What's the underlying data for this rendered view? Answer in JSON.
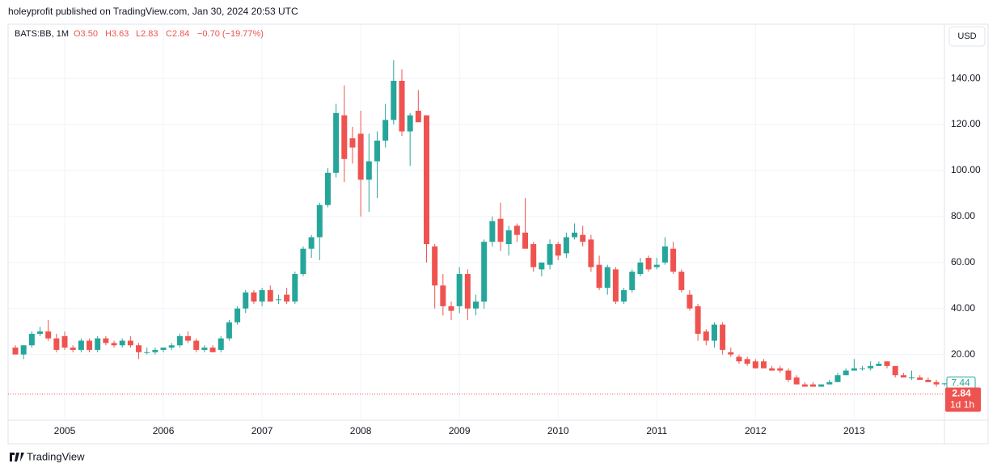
{
  "header": {
    "attribution": "holeyprofit published on TradingView.com, Jan 30, 2024 20:53 UTC",
    "symbol": "BATS:BB, 1M",
    "open": "O3.50",
    "high": "H3.63",
    "low": "L2.83",
    "close": "C2.84",
    "change": "−0.70 (−19.77%)",
    "currency": "USD"
  },
  "footer": {
    "brand": "TradingView"
  },
  "chart_data": {
    "type": "candlestick",
    "up_color": "#26a69a",
    "down_color": "#ef5350",
    "grid": true,
    "last_price": 7.44,
    "current_price": 2.84,
    "countdown": "1d 1h",
    "ylim": [
      -8.6,
      163.6
    ],
    "yticks": [
      {
        "value": 20,
        "label": "20.00"
      },
      {
        "value": 40,
        "label": "40.00"
      },
      {
        "value": 60,
        "label": "60.00"
      },
      {
        "value": 80,
        "label": "80.00"
      },
      {
        "value": 100,
        "label": "100.00"
      },
      {
        "value": 120,
        "label": "120.00"
      },
      {
        "value": 140,
        "label": "140.00"
      }
    ],
    "categories": [
      null,
      null,
      null,
      null,
      null,
      null,
      "2005",
      null,
      null,
      null,
      null,
      null,
      null,
      null,
      null,
      null,
      null,
      null,
      "2006",
      null,
      null,
      null,
      null,
      null,
      null,
      null,
      null,
      null,
      null,
      null,
      "2007",
      null,
      null,
      null,
      null,
      null,
      null,
      null,
      null,
      null,
      null,
      null,
      "2008",
      null,
      null,
      null,
      null,
      null,
      null,
      null,
      null,
      null,
      null,
      null,
      "2009",
      null,
      null,
      null,
      null,
      null,
      null,
      null,
      null,
      null,
      null,
      null,
      "2010",
      null,
      null,
      null,
      null,
      null,
      null,
      null,
      null,
      null,
      null,
      null,
      "2011",
      null,
      null,
      null,
      null,
      null,
      null,
      null,
      null,
      null,
      null,
      null,
      "2012",
      null,
      null,
      null,
      null,
      null,
      null,
      null,
      null,
      null,
      null,
      null,
      "2013",
      null,
      null,
      null,
      null,
      null,
      null,
      null,
      null,
      null,
      null,
      null
    ],
    "candles": [
      [
        23,
        24,
        20,
        20
      ],
      [
        20,
        24,
        18,
        24
      ],
      [
        24,
        30,
        23,
        29
      ],
      [
        29,
        32,
        28,
        30
      ],
      [
        30,
        35,
        26,
        27
      ],
      [
        27,
        29,
        21,
        22
      ],
      [
        28,
        30,
        22,
        23
      ],
      [
        23,
        24,
        21,
        22
      ],
      [
        22,
        27,
        21,
        26
      ],
      [
        26,
        27,
        21,
        22
      ],
      [
        22,
        28,
        21,
        27
      ],
      [
        27,
        28,
        24,
        25
      ],
      [
        25,
        26,
        23,
        24
      ],
      [
        24,
        27,
        23,
        26
      ],
      [
        26,
        28,
        23,
        24
      ],
      [
        24,
        25,
        18,
        21
      ],
      [
        21,
        23,
        20,
        21
      ],
      [
        21,
        23,
        20,
        22
      ],
      [
        22,
        23,
        21,
        23
      ],
      [
        23,
        25,
        22,
        24
      ],
      [
        24,
        29,
        23,
        28
      ],
      [
        28,
        30,
        25,
        26
      ],
      [
        26,
        27,
        21,
        22
      ],
      [
        22,
        24,
        21,
        23
      ],
      [
        23,
        24,
        21,
        21
      ],
      [
        22,
        28,
        21,
        27
      ],
      [
        27,
        35,
        26,
        34
      ],
      [
        34,
        41,
        33,
        40
      ],
      [
        40,
        48,
        38,
        47
      ],
      [
        47,
        48,
        42,
        43
      ],
      [
        43,
        49,
        41,
        48
      ],
      [
        48,
        50,
        43,
        43
      ],
      [
        44,
        46,
        42,
        44
      ],
      [
        46,
        49,
        42,
        43
      ],
      [
        43,
        56,
        42,
        55
      ],
      [
        55,
        67,
        54,
        66
      ],
      [
        66,
        72,
        62,
        71
      ],
      [
        71,
        86,
        61,
        85
      ],
      [
        85,
        101,
        84,
        99
      ],
      [
        99,
        129,
        97,
        125
      ],
      [
        124,
        137,
        95,
        105
      ],
      [
        114,
        119,
        103,
        110
      ],
      [
        116,
        126,
        80,
        96
      ],
      [
        96,
        116,
        82,
        104
      ],
      [
        104,
        117,
        88,
        113
      ],
      [
        113,
        129,
        110,
        122
      ],
      [
        122,
        148,
        120,
        139
      ],
      [
        139,
        144,
        115,
        117
      ],
      [
        117,
        125,
        102,
        124
      ],
      [
        126,
        135,
        121,
        121
      ],
      [
        124,
        124,
        60,
        68
      ],
      [
        67,
        68,
        40,
        50
      ],
      [
        50,
        55,
        37,
        41
      ],
      [
        41,
        43,
        35,
        39
      ],
      [
        41,
        58,
        38,
        55
      ],
      [
        55,
        57,
        35,
        40
      ],
      [
        40,
        46,
        37,
        43
      ],
      [
        43,
        70,
        40,
        69
      ],
      [
        69,
        80,
        67,
        78
      ],
      [
        79,
        86,
        65,
        69
      ],
      [
        68,
        76,
        63,
        74
      ],
      [
        76,
        77,
        69,
        72
      ],
      [
        73,
        88,
        67,
        66
      ],
      [
        68,
        69,
        56,
        58
      ],
      [
        57,
        60,
        54,
        60
      ],
      [
        59,
        70,
        57,
        68
      ],
      [
        68,
        69,
        61,
        63
      ],
      [
        64,
        73,
        62,
        71
      ],
      [
        71,
        77,
        70,
        73
      ],
      [
        72,
        76,
        67,
        69
      ],
      [
        70,
        72,
        56,
        58
      ],
      [
        59,
        63,
        48,
        49
      ],
      [
        49,
        59,
        46,
        58
      ],
      [
        57,
        58,
        42,
        43
      ],
      [
        43,
        49,
        42,
        48
      ],
      [
        48,
        57,
        47,
        56
      ],
      [
        55,
        62,
        54,
        60
      ],
      [
        62,
        63,
        56,
        57
      ],
      [
        58,
        62,
        57,
        59
      ],
      [
        60,
        71,
        59,
        67
      ],
      [
        66,
        69,
        55,
        56
      ],
      [
        56,
        57,
        47,
        48
      ],
      [
        46,
        48,
        39,
        40
      ],
      [
        41,
        42,
        26,
        29
      ],
      [
        30,
        31,
        24,
        26
      ],
      [
        26,
        34,
        23,
        33
      ],
      [
        33,
        34,
        20,
        22
      ],
      [
        21,
        23,
        19,
        20
      ],
      [
        19,
        20,
        16,
        17
      ],
      [
        18,
        19,
        15,
        16
      ],
      [
        17,
        18,
        14,
        14
      ],
      [
        17,
        18,
        14,
        14
      ],
      [
        14,
        15,
        13,
        13
      ],
      [
        14,
        15,
        12,
        13
      ],
      [
        13,
        14,
        8,
        9
      ],
      [
        10,
        11,
        7,
        7
      ],
      [
        7,
        8,
        6,
        6
      ],
      [
        7,
        8,
        6,
        6
      ],
      [
        6,
        7,
        6,
        7
      ],
      [
        7,
        9,
        7,
        8
      ],
      [
        8,
        12,
        8,
        11
      ],
      [
        11,
        14,
        11,
        13
      ],
      [
        13,
        18,
        13,
        14
      ],
      [
        14,
        15,
        13,
        14
      ],
      [
        14,
        17,
        13,
        15
      ],
      [
        15,
        17,
        15,
        16
      ],
      [
        17,
        17,
        14,
        15
      ],
      [
        15,
        15,
        10,
        11
      ],
      [
        11,
        12,
        10,
        10
      ],
      [
        10,
        13,
        9,
        10
      ],
      [
        10,
        11,
        9,
        9
      ],
      [
        9,
        10,
        8,
        8
      ],
      [
        8,
        9,
        6,
        7
      ],
      [
        7.1,
        7.6,
        6.5,
        7.44
      ]
    ]
  }
}
